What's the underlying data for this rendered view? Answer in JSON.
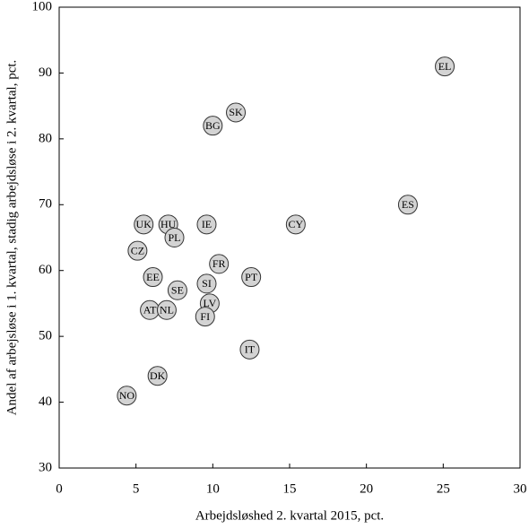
{
  "chart_data": {
    "type": "scatter",
    "x_label": "Arbejdsløshed 2. kvartal 2015, pct.",
    "y_label": "Andel af arbejsløse i 1. kvartal, stadig arbejdsløse i 2. kvartal, pct.",
    "labels": [
      "EL",
      "SK",
      "BG",
      "ES",
      "CY",
      "UK",
      "HU",
      "IE",
      "PL",
      "CZ",
      "FR",
      "EE",
      "PT",
      "SI",
      "SE",
      "LV",
      "AT",
      "NL",
      "FI",
      "IT",
      "DK",
      "NO"
    ],
    "x": [
      25.1,
      11.5,
      10.0,
      22.7,
      15.4,
      5.5,
      7.1,
      9.6,
      7.5,
      5.1,
      10.4,
      6.1,
      12.5,
      9.6,
      7.7,
      9.8,
      5.9,
      7.0,
      9.5,
      12.4,
      6.4,
      4.4
    ],
    "values": [
      91,
      84,
      82,
      70,
      67,
      67,
      67,
      67,
      65,
      63,
      61,
      59,
      59,
      58,
      57,
      55,
      54,
      54,
      53,
      48,
      44,
      41
    ],
    "color": "#d3d3d3",
    "xlim": [
      0,
      30
    ],
    "xticks": [
      0,
      5,
      10,
      15,
      20,
      25,
      30
    ],
    "ylim": [
      30,
      100
    ],
    "yticks": [
      30,
      40,
      50,
      60,
      70,
      80,
      90,
      100
    ],
    "grid": false
  }
}
